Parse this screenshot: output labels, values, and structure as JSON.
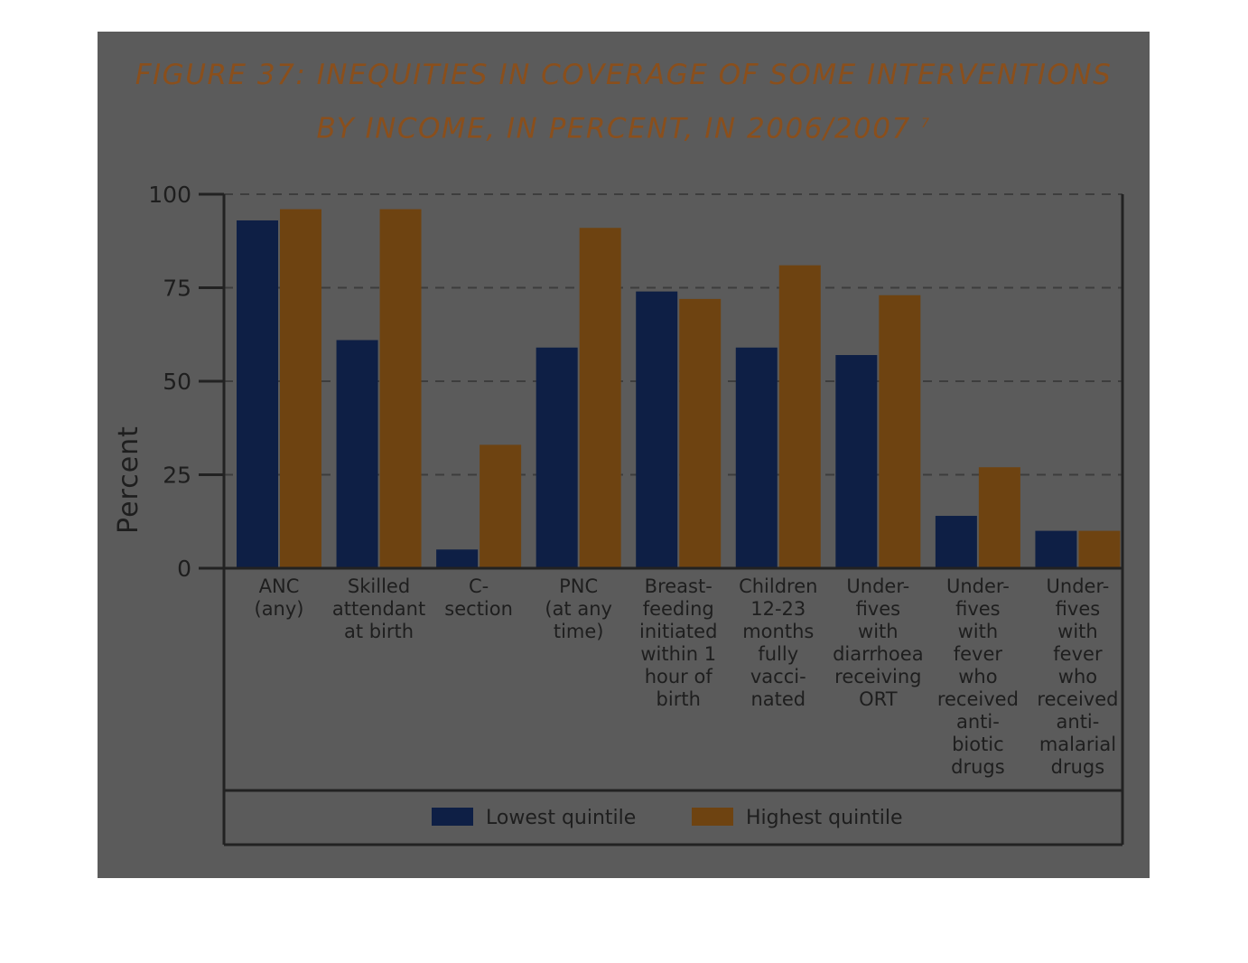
{
  "chart_data": {
    "type": "bar",
    "title_line1": "FIGURE 37: INEQUITIES IN COVERAGE OF SOME INTERVENTIONS",
    "title_line2": "BY INCOME, IN PERCENT, IN 2006/2007",
    "title_footnote": "7",
    "ylabel": "Percent",
    "xlabel": "",
    "ylim": [
      0,
      100
    ],
    "yticks": [
      "0",
      "25",
      "50",
      "75",
      "100"
    ],
    "grid": "dashed horizontal",
    "legend_position": "bottom",
    "categories": [
      [
        "ANC",
        "(any)"
      ],
      [
        "Skilled",
        "attendant",
        "at birth"
      ],
      [
        "C-",
        "section"
      ],
      [
        "PNC",
        "(at any",
        "time)"
      ],
      [
        "Breast-",
        "feeding",
        "initiated",
        "within 1",
        "hour of",
        "birth"
      ],
      [
        "Children",
        "12-23",
        "months",
        "fully",
        "vacci-",
        "nated"
      ],
      [
        "Under-",
        "fives",
        "with",
        "diarrhoea",
        "receiving",
        "ORT"
      ],
      [
        "Under-",
        "fives",
        "with",
        "fever",
        "who",
        "received",
        "anti-",
        "biotic",
        "drugs"
      ],
      [
        "Under-",
        "fives",
        "with",
        "fever",
        "who",
        "received",
        "anti-",
        "malarial",
        "drugs"
      ]
    ],
    "series": [
      {
        "name": "Lowest quintile",
        "color": "#0e1f45",
        "values": [
          93,
          61,
          5,
          59,
          74,
          59,
          57,
          14,
          10
        ]
      },
      {
        "name": "Highest quintile",
        "color": "#6e4311",
        "values": [
          96,
          96,
          33,
          91,
          72,
          81,
          73,
          27,
          10
        ]
      }
    ]
  },
  "colors": {
    "panel": "#5b5b5b",
    "title": "#8a4f1c",
    "text": "#1e1e1e",
    "axis": "#222222"
  }
}
